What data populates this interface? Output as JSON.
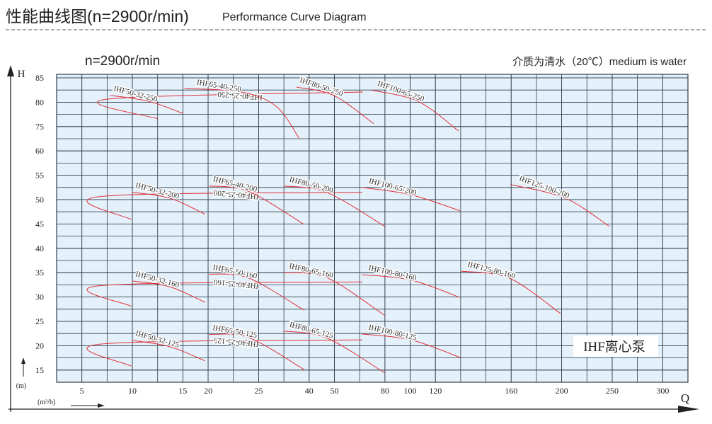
{
  "chart_data": {
    "type": "line",
    "title": "性能曲线图(n=2900r/min)",
    "subtitle": "Performance Curve Diagram",
    "speed_label": "n=2900r/min",
    "medium_note": "介质为清水（20℃）medium is water",
    "ylabel": "H",
    "yunit": "(m)",
    "xlabel": "Q",
    "xunit": "(m³/h)",
    "annotation": "IHF离心泵",
    "grid": true,
    "xticks": [
      5,
      10,
      15,
      20,
      25,
      40,
      50,
      80,
      100,
      120,
      160,
      200,
      250,
      300
    ],
    "yticks": [
      85,
      80,
      75,
      60,
      55,
      50,
      45,
      40,
      35,
      30,
      25,
      20,
      15
    ],
    "series": [
      {
        "name": "IHF40-25-250",
        "color": "#e0303a",
        "x": [
          3.3,
          7.4,
          12.5
        ],
        "values": [
          82.1,
          80.6,
          76.6
        ]
      },
      {
        "name": "IHF50-32-250",
        "color": "#e0303a",
        "x": [
          7.8,
          11.6,
          15
        ],
        "values": [
          81.4,
          80.2,
          77.7
        ]
      },
      {
        "name": "IHF65-40-250",
        "color": "#e0303a",
        "x": [
          15.3,
          23.3,
          30.3,
          37
        ],
        "values": [
          82.8,
          82.1,
          79.1,
          67.9
        ]
      },
      {
        "name": "IHF80-50-250",
        "color": "#e0303a",
        "x": [
          36.2,
          49.7,
          73.3
        ],
        "values": [
          83.1,
          81.4,
          75.6
        ]
      },
      {
        "name": "IHF100-65-250",
        "color": "#e0303a",
        "x": [
          71.7,
          106.1,
          132.2
        ],
        "values": [
          82.5,
          80.2,
          72.3
        ]
      },
      {
        "name": "IHF40-25-200",
        "color": "#e0303a",
        "x": [
          2.6,
          6.7,
          9.9
        ],
        "values": [
          51.5,
          50.6,
          45.9
        ]
      },
      {
        "name": "IHF50-32-200",
        "color": "#e0303a",
        "x": [
          10,
          13.7,
          19.4
        ],
        "values": [
          51.5,
          50.3,
          47
        ]
      },
      {
        "name": "IHF65-40-200",
        "color": "#e0303a",
        "x": [
          20.1,
          24,
          38.5
        ],
        "values": [
          52.8,
          51.7,
          44.9
        ]
      },
      {
        "name": "IHF80-50-200",
        "color": "#e0303a",
        "x": [
          32.4,
          46.9,
          80
        ],
        "values": [
          52.8,
          51.5,
          44.5
        ]
      },
      {
        "name": "IHF100-65-200",
        "color": "#e0303a",
        "x": [
          66.3,
          100.6,
          133
        ],
        "values": [
          52.5,
          51,
          47.7
        ]
      },
      {
        "name": "IHF125-100-200",
        "color": "#e0303a",
        "x": [
          159.6,
          203.5,
          247.2
        ],
        "values": [
          53.1,
          50.3,
          44.5
        ]
      },
      {
        "name": "IHF40-25-160",
        "color": "#e0303a",
        "x": [
          2.6,
          6.7,
          9.9
        ],
        "values": [
          33.1,
          32.3,
          28.1
        ]
      },
      {
        "name": "IHF50-32-160",
        "color": "#e0303a",
        "x": [
          10,
          13.7,
          19.4
        ],
        "values": [
          33.3,
          32.1,
          28.9
        ]
      },
      {
        "name": "IHF65-50-160",
        "color": "#e0303a",
        "x": [
          20.1,
          24,
          38.5
        ],
        "values": [
          34.7,
          33.9,
          27.3
        ]
      },
      {
        "name": "IHF80-65-160",
        "color": "#e0303a",
        "x": [
          32.4,
          46.9,
          80
        ],
        "values": [
          35,
          34,
          26.2
        ]
      },
      {
        "name": "IHF100-80-160",
        "color": "#e0303a",
        "x": [
          66.3,
          100.6,
          133
        ],
        "values": [
          34.6,
          33.5,
          29.9
        ]
      },
      {
        "name": "IHF125-80-160",
        "color": "#e0303a",
        "x": [
          133.7,
          158.9,
          199.2
        ],
        "values": [
          35.3,
          33.9,
          26.6
        ]
      },
      {
        "name": "IHF40-25-125",
        "color": "#e0303a",
        "x": [
          2.6,
          6.7,
          9.9
        ],
        "values": [
          21.2,
          20.3,
          15.8
        ]
      },
      {
        "name": "IHF50-32-125",
        "color": "#e0303a",
        "x": [
          10,
          13.7,
          19.4
        ],
        "values": [
          21.1,
          19.8,
          16.9
        ]
      },
      {
        "name": "IHF65-50-125",
        "color": "#e0303a",
        "x": [
          20.1,
          24,
          38.5
        ],
        "values": [
          22.3,
          21.7,
          15.1
        ]
      },
      {
        "name": "IHF80-65-125",
        "color": "#e0303a",
        "x": [
          32.4,
          46.9,
          80
        ],
        "values": [
          23,
          21.6,
          14.4
        ]
      },
      {
        "name": "IHF100-80-125",
        "color": "#e0303a",
        "x": [
          66.3,
          100.6,
          133
        ],
        "values": [
          22.4,
          21.2,
          17.6
        ]
      }
    ]
  }
}
